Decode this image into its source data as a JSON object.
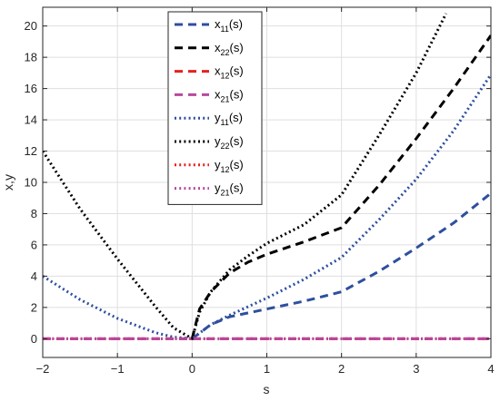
{
  "chart_data": {
    "type": "line",
    "xlabel": "s",
    "ylabel": "x,y",
    "xlim": [
      -2,
      4
    ],
    "ylim": [
      -1.2,
      21.2
    ],
    "xticks": [
      -2,
      -1,
      0,
      1,
      2,
      3,
      4
    ],
    "yticks": [
      0,
      2,
      4,
      6,
      8,
      10,
      12,
      14,
      16,
      18,
      20
    ],
    "grid": true,
    "legend_position": "top-center",
    "series": [
      {
        "name": "x11(s)",
        "label_main": "x",
        "label_sub": "11",
        "label_tail": "(s)",
        "color": "#2E4F9E",
        "style": "dashed",
        "x": [
          0,
          0.25,
          0.5,
          1,
          1.5,
          2,
          2.5,
          3,
          3.5,
          4
        ],
        "y": [
          0,
          0.9,
          1.4,
          1.9,
          2.4,
          3.0,
          4.3,
          5.8,
          7.4,
          9.3
        ]
      },
      {
        "name": "x22(s)",
        "label_main": "x",
        "label_sub": "22",
        "label_tail": "(s)",
        "color": "#000000",
        "style": "dashed",
        "x": [
          0,
          0.1,
          0.25,
          0.5,
          0.75,
          1,
          1.5,
          2,
          2.5,
          3,
          3.5,
          4
        ],
        "y": [
          0,
          1.9,
          3.0,
          4.2,
          4.9,
          5.4,
          6.2,
          7.1,
          9.8,
          12.8,
          16.0,
          19.4
        ]
      },
      {
        "name": "x12(s)",
        "label_main": "x",
        "label_sub": "12",
        "label_tail": "(s)",
        "color": "#E8201E",
        "style": "dashed",
        "x": [
          -2,
          4
        ],
        "y": [
          0,
          0
        ]
      },
      {
        "name": "x21(s)",
        "label_main": "x",
        "label_sub": "21",
        "label_tail": "(s)",
        "color": "#B8489E",
        "style": "dashed",
        "x": [
          -2,
          4
        ],
        "y": [
          0,
          0
        ]
      },
      {
        "name": "y11(s)",
        "label_main": "y",
        "label_sub": "11",
        "label_tail": "(s)",
        "color": "#2E4F9E",
        "style": "dotted",
        "x": [
          -2,
          -1.5,
          -1,
          -0.5,
          -0.25,
          0,
          0.25,
          0.5,
          1,
          1.5,
          2,
          2.5,
          3,
          3.5,
          4
        ],
        "y": [
          4.0,
          2.5,
          1.3,
          0.4,
          0.1,
          0,
          0.9,
          1.5,
          2.6,
          3.8,
          5.2,
          7.6,
          10.2,
          13.3,
          16.9
        ]
      },
      {
        "name": "y22(s)",
        "label_main": "y",
        "label_sub": "22",
        "label_tail": "(s)",
        "color": "#000000",
        "style": "dotted",
        "x": [
          -2,
          -1.5,
          -1,
          -0.5,
          -0.25,
          0,
          0.1,
          0.25,
          0.5,
          0.75,
          1,
          1.5,
          2,
          2.5,
          3,
          3.4
        ],
        "y": [
          12.0,
          8.3,
          5.1,
          2.1,
          0.7,
          0,
          1.7,
          3.0,
          4.4,
          5.3,
          6.1,
          7.3,
          9.2,
          13.0,
          17.0,
          20.8
        ]
      },
      {
        "name": "y12(s)",
        "label_main": "y",
        "label_sub": "12",
        "label_tail": "(s)",
        "color": "#E8201E",
        "style": "dotted",
        "x": [
          -2,
          4
        ],
        "y": [
          0,
          0
        ]
      },
      {
        "name": "y21(s)",
        "label_main": "y",
        "label_sub": "21",
        "label_tail": "(s)",
        "color": "#B8489E",
        "style": "dotted",
        "x": [
          -2,
          4
        ],
        "y": [
          0,
          0
        ]
      }
    ]
  }
}
